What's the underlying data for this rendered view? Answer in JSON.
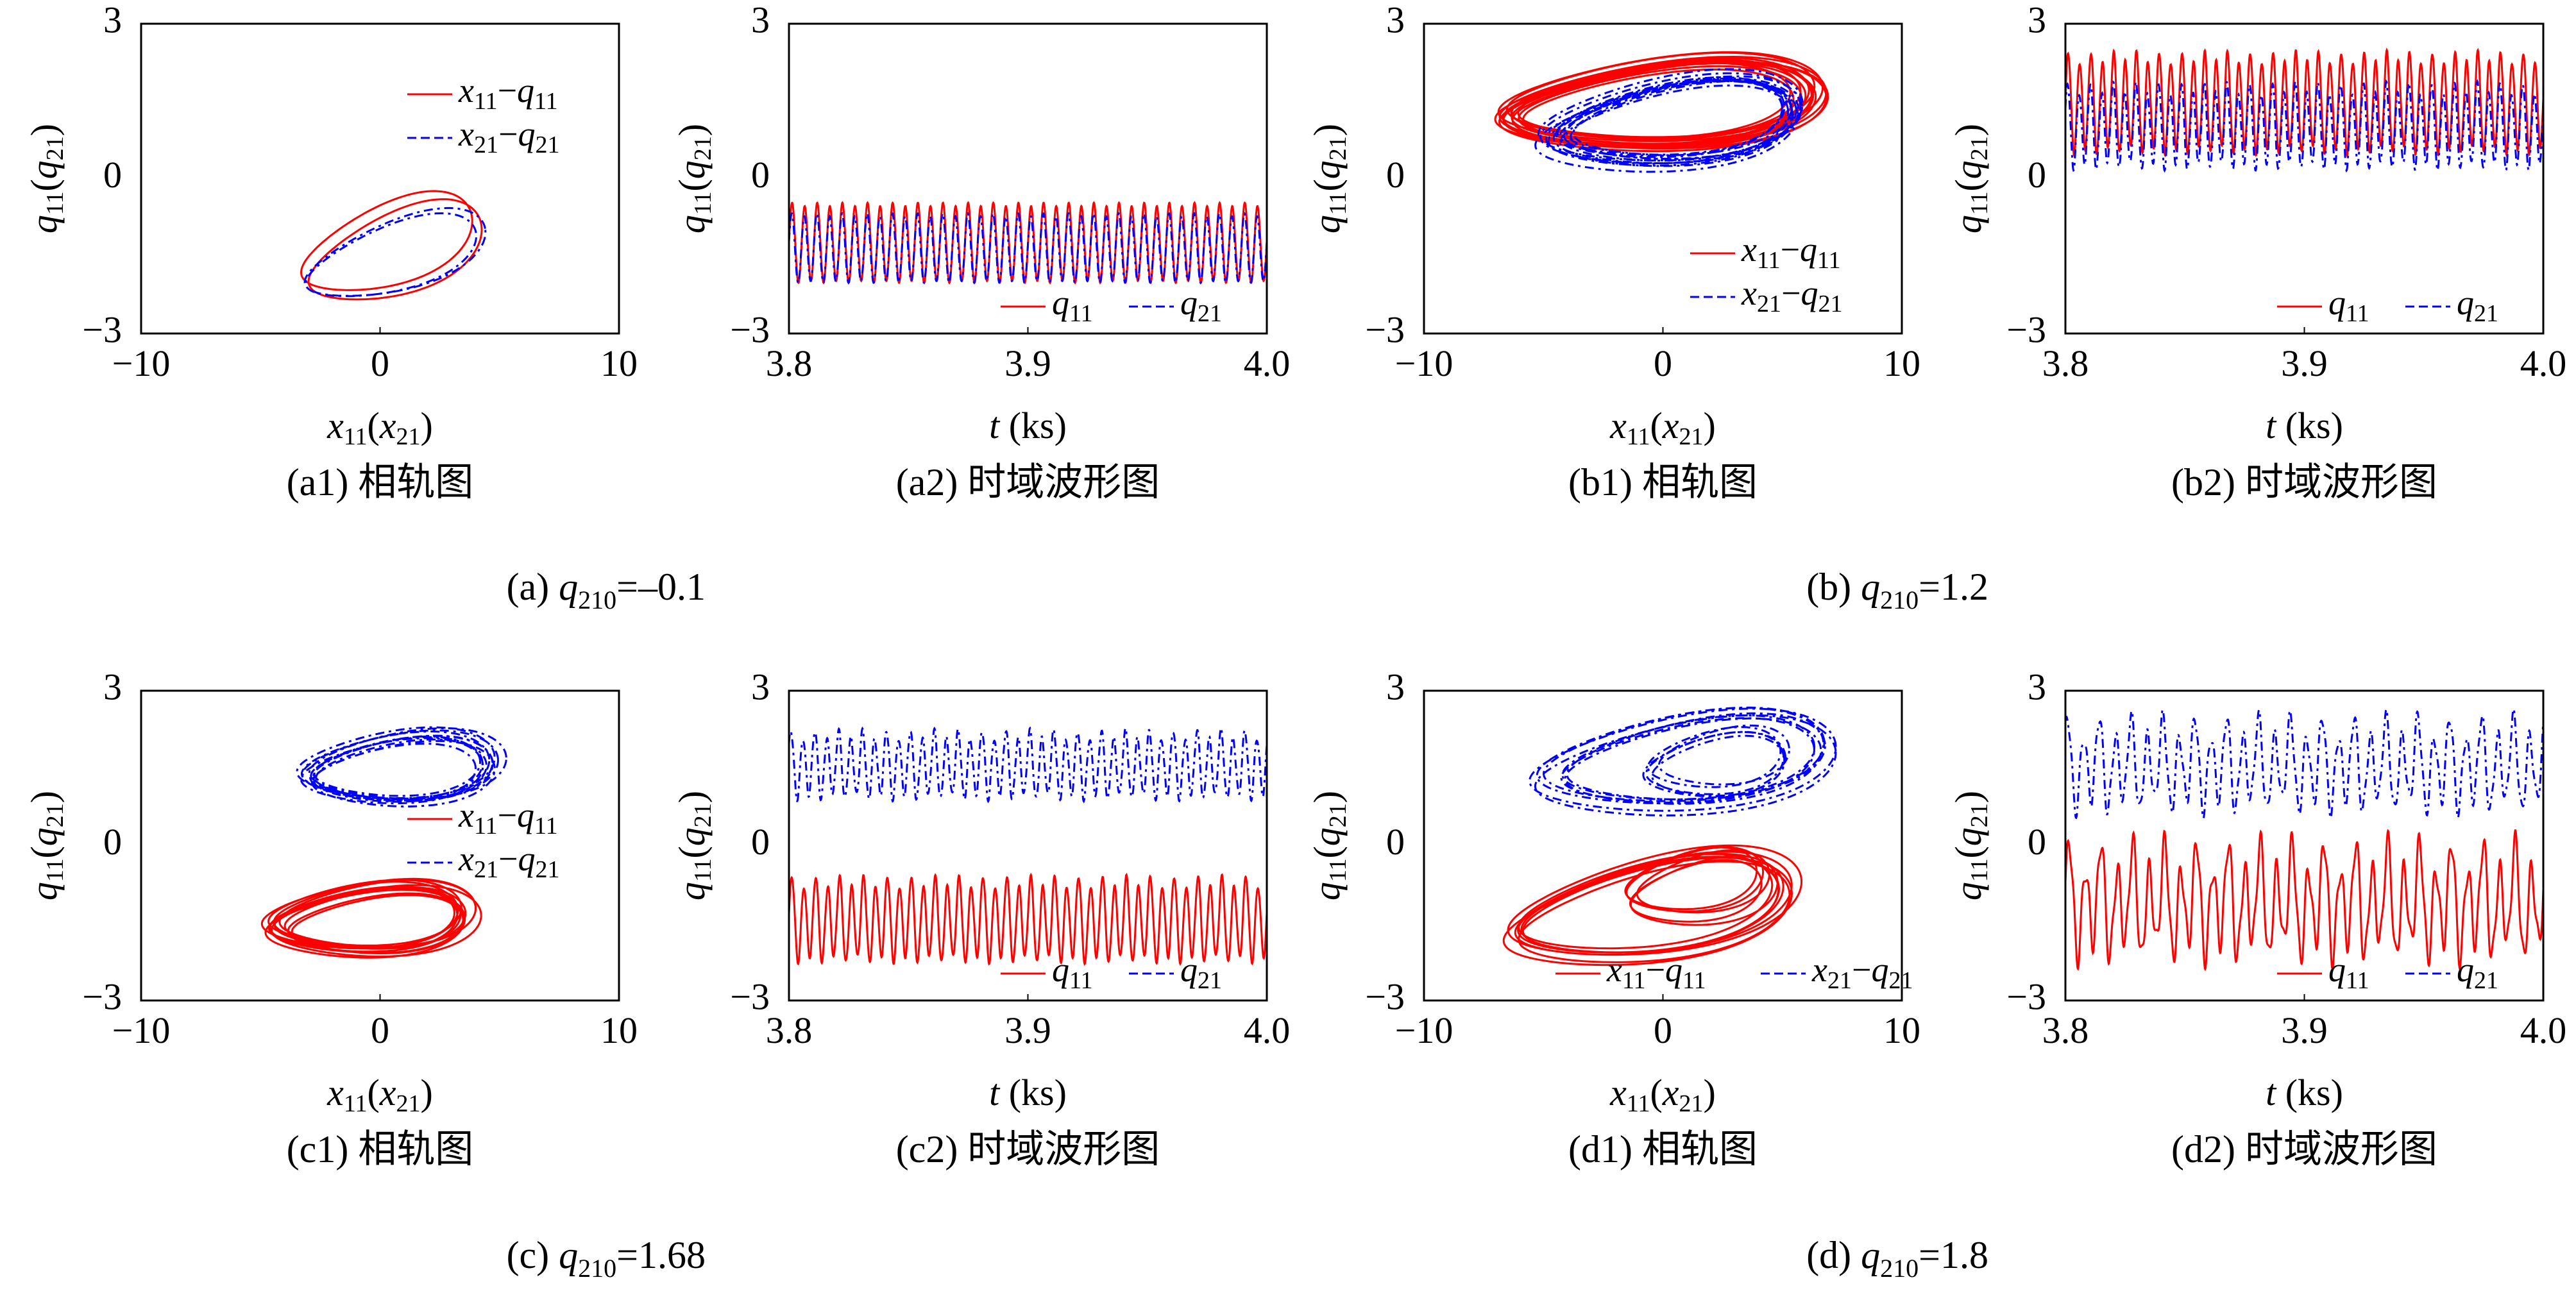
{
  "colors": {
    "series_q11": "#ff0000",
    "series_q21": "#0000ff",
    "axis": "#000000"
  },
  "groups": [
    {
      "label": "(a)",
      "param": "q",
      "param_sub": "210",
      "param_value": "=–0.1"
    },
    {
      "label": "(b)",
      "param": "q",
      "param_sub": "210",
      "param_value": "=1.2"
    },
    {
      "label": "(c)",
      "param": "q",
      "param_sub": "210",
      "param_value": "=1.68"
    },
    {
      "label": "(d)",
      "param": "q",
      "param_sub": "210",
      "param_value": "=1.8"
    }
  ],
  "chart_data": [
    {
      "id": "a1",
      "type": "line",
      "kind": "phase",
      "caption": "(a1) 相轨图",
      "xlabel": "x11(x21)",
      "ylabel": "q11(q21)",
      "xlim": [
        -10,
        10
      ],
      "ylim": [
        -3,
        3
      ],
      "xticks": [
        "−10",
        "0",
        "10"
      ],
      "yticks": [
        "3",
        "0",
        "−3"
      ],
      "legend": {
        "position": "top-right",
        "layout": "vertical",
        "entries": [
          {
            "series": "q11",
            "text": "x11−q11"
          },
          {
            "series": "q21",
            "text": "x21−q21"
          }
        ]
      },
      "series": [
        {
          "key": "q11",
          "style": "solid",
          "loops": [
            {
              "cx": 0.5,
              "cy": -1.4,
              "rx": 3.9,
              "ry": 0.85,
              "tilt": 18,
              "reps": 2
            }
          ]
        },
        {
          "key": "q21",
          "style": "dashed",
          "loops": [
            {
              "cx": 0.8,
              "cy": -1.55,
              "rx": 3.7,
              "ry": 0.65,
              "tilt": 20,
              "reps": 2
            }
          ]
        }
      ]
    },
    {
      "id": "a2",
      "type": "line",
      "kind": "time",
      "caption": "(a2) 时域波形图",
      "xlabel": "t (ks)",
      "ylabel": "q11(q21)",
      "xlim": [
        3.8,
        4.0
      ],
      "ylim": [
        -3,
        3
      ],
      "xticks": [
        "3.8",
        "3.9",
        "4.0"
      ],
      "yticks": [
        "3",
        "0",
        "−3"
      ],
      "legend": {
        "position": "bottom-right",
        "layout": "horizontal",
        "entries": [
          {
            "series": "q11",
            "text": "q11"
          },
          {
            "series": "q21",
            "text": "q21"
          }
        ]
      },
      "series": [
        {
          "key": "q11",
          "style": "solid",
          "mean": -1.25,
          "amp": 0.75,
          "cycles": 38,
          "mod": 0.05,
          "mod2": 0.0,
          "phase": 0
        },
        {
          "key": "q21",
          "style": "dashed",
          "mean": -1.35,
          "amp": 0.65,
          "cycles": 38,
          "mod": 0.05,
          "mod2": 0.0,
          "phase": 0.15
        }
      ]
    },
    {
      "id": "b1",
      "type": "line",
      "kind": "phase",
      "caption": "(b1) 相轨图",
      "xlabel": "x11(x21)",
      "ylabel": "q11(q21)",
      "xlim": [
        -10,
        10
      ],
      "ylim": [
        -3,
        3
      ],
      "xticks": [
        "−10",
        "0",
        "10"
      ],
      "yticks": [
        "3",
        "0",
        "−3"
      ],
      "legend": {
        "position": "bottom-right",
        "layout": "vertical",
        "entries": [
          {
            "series": "q11",
            "text": "x11−q11"
          },
          {
            "series": "q21",
            "text": "x21−q21"
          }
        ]
      },
      "series": [
        {
          "key": "q11",
          "style": "solid",
          "loops": [
            {
              "cx": 0,
              "cy": 1.45,
              "rx": 6.3,
              "ry": 0.75,
              "tilt": 8,
              "reps": 14
            }
          ]
        },
        {
          "key": "q21",
          "style": "dashed",
          "loops": [
            {
              "cx": 0.5,
              "cy": 1.05,
              "rx": 5.1,
              "ry": 0.75,
              "tilt": 10,
              "reps": 14
            }
          ]
        }
      ]
    },
    {
      "id": "b2",
      "type": "line",
      "kind": "time",
      "caption": "(b2) 时域波形图",
      "xlabel": "t (ks)",
      "ylabel": "q11(q21)",
      "xlim": [
        3.8,
        4.0
      ],
      "ylim": [
        -3,
        3
      ],
      "xticks": [
        "3.8",
        "3.9",
        "4.0"
      ],
      "yticks": [
        "3",
        "0",
        "−3"
      ],
      "legend": {
        "position": "bottom-right",
        "layout": "horizontal",
        "entries": [
          {
            "series": "q11",
            "text": "q11"
          },
          {
            "series": "q21",
            "text": "q21"
          }
        ]
      },
      "series": [
        {
          "key": "q11",
          "style": "solid",
          "mean": 1.45,
          "amp": 0.9,
          "cycles": 42,
          "mod": 0.12,
          "mod2": 0.05,
          "phase": 0
        },
        {
          "key": "q21",
          "style": "dashed",
          "mean": 1.0,
          "amp": 0.75,
          "cycles": 42,
          "mod": 0.15,
          "mod2": 0.05,
          "phase": 0.3
        }
      ]
    },
    {
      "id": "c1",
      "type": "line",
      "kind": "phase",
      "caption": "(c1) 相轨图",
      "xlabel": "x11(x21)",
      "ylabel": "q11(q21)",
      "xlim": [
        -10,
        10
      ],
      "ylim": [
        -3,
        3
      ],
      "xticks": [
        "−10",
        "0",
        "10"
      ],
      "yticks": [
        "3",
        "0",
        "−3"
      ],
      "legend": {
        "position": "right",
        "layout": "vertical",
        "entries": [
          {
            "series": "q11",
            "text": "x11−q11"
          },
          {
            "series": "q21",
            "text": "x21−q21"
          }
        ]
      },
      "series": [
        {
          "key": "q11",
          "style": "solid",
          "loops": [
            {
              "cx": -0.5,
              "cy": -1.45,
              "rx": 4.0,
              "ry": 0.6,
              "tilt": 6,
              "reps": 12
            }
          ]
        },
        {
          "key": "q21",
          "style": "dashed",
          "loops": [
            {
              "cx": 0.8,
              "cy": 1.45,
              "rx": 3.8,
              "ry": 0.6,
              "tilt": 6,
              "reps": 12
            }
          ]
        }
      ]
    },
    {
      "id": "c2",
      "type": "line",
      "kind": "time",
      "caption": "(c2) 时域波形图",
      "xlabel": "t (ks)",
      "ylabel": "q11(q21)",
      "xlim": [
        3.8,
        4.0
      ],
      "ylim": [
        -3,
        3
      ],
      "xticks": [
        "3.8",
        "3.9",
        "4.0"
      ],
      "yticks": [
        "3",
        "0",
        "−3"
      ],
      "legend": {
        "position": "bottom-right",
        "layout": "horizontal",
        "entries": [
          {
            "series": "q11",
            "text": "q11"
          },
          {
            "series": "q21",
            "text": "q21"
          }
        ]
      },
      "series": [
        {
          "key": "q11",
          "style": "solid",
          "mean": -1.45,
          "amp": 0.75,
          "cycles": 40,
          "mod": 0.15,
          "mod2": 0.05,
          "phase": 0
        },
        {
          "key": "q21",
          "style": "dashed",
          "mean": 1.55,
          "amp": 0.6,
          "cycles": 40,
          "mod": 0.15,
          "mod2": 0.08,
          "phase": 0.5
        }
      ]
    },
    {
      "id": "d1",
      "type": "line",
      "kind": "phase",
      "caption": "(d1) 相轨图",
      "xlabel": "x11(x21)",
      "ylabel": "q11(q21)",
      "xlim": [
        -10,
        10
      ],
      "ylim": [
        -3,
        3
      ],
      "xticks": [
        "−10",
        "0",
        "10"
      ],
      "yticks": [
        "3",
        "0",
        "−3"
      ],
      "legend": {
        "position": "bottom",
        "layout": "horizontal",
        "entries": [
          {
            "series": "q11",
            "text": "x11−q11"
          },
          {
            "series": "q21",
            "text": "x21−q21"
          }
        ]
      },
      "series": [
        {
          "key": "q11",
          "style": "solid",
          "loops": [
            {
              "cx": -0.5,
              "cy": -1.25,
              "rx": 6.0,
              "ry": 0.9,
              "tilt": 14,
              "reps": 8
            },
            {
              "cx": 1.5,
              "cy": -0.8,
              "rx": 3.0,
              "ry": 0.6,
              "tilt": 10,
              "reps": 5
            }
          ]
        },
        {
          "key": "q21",
          "style": "dashed",
          "loops": [
            {
              "cx": 1.0,
              "cy": 1.6,
              "rx": 6.0,
              "ry": 0.85,
              "tilt": 10,
              "reps": 8
            },
            {
              "cx": 2.5,
              "cy": 1.6,
              "rx": 2.8,
              "ry": 0.55,
              "tilt": 8,
              "reps": 5
            }
          ]
        }
      ]
    },
    {
      "id": "d2",
      "type": "line",
      "kind": "time",
      "caption": "(d2) 时域波形图",
      "xlabel": "t (ks)",
      "ylabel": "q11(q21)",
      "xlim": [
        3.8,
        4.0
      ],
      "ylim": [
        -3,
        3
      ],
      "xticks": [
        "3.8",
        "3.9",
        "4.0"
      ],
      "yticks": [
        "3",
        "0",
        "−3"
      ],
      "legend": {
        "position": "bottom-right",
        "layout": "horizontal",
        "entries": [
          {
            "series": "q11",
            "text": "q11"
          },
          {
            "series": "q21",
            "text": "q21"
          }
        ]
      },
      "series": [
        {
          "key": "q11",
          "style": "solid",
          "mean": -1.1,
          "amp": 0.9,
          "cycles": 30,
          "mod": 0.35,
          "mod2": 0.25,
          "phase": 0
        },
        {
          "key": "q21",
          "style": "dashed",
          "mean": 1.55,
          "amp": 0.75,
          "cycles": 30,
          "mod": 0.3,
          "mod2": 0.2,
          "phase": 0.7
        }
      ]
    }
  ]
}
